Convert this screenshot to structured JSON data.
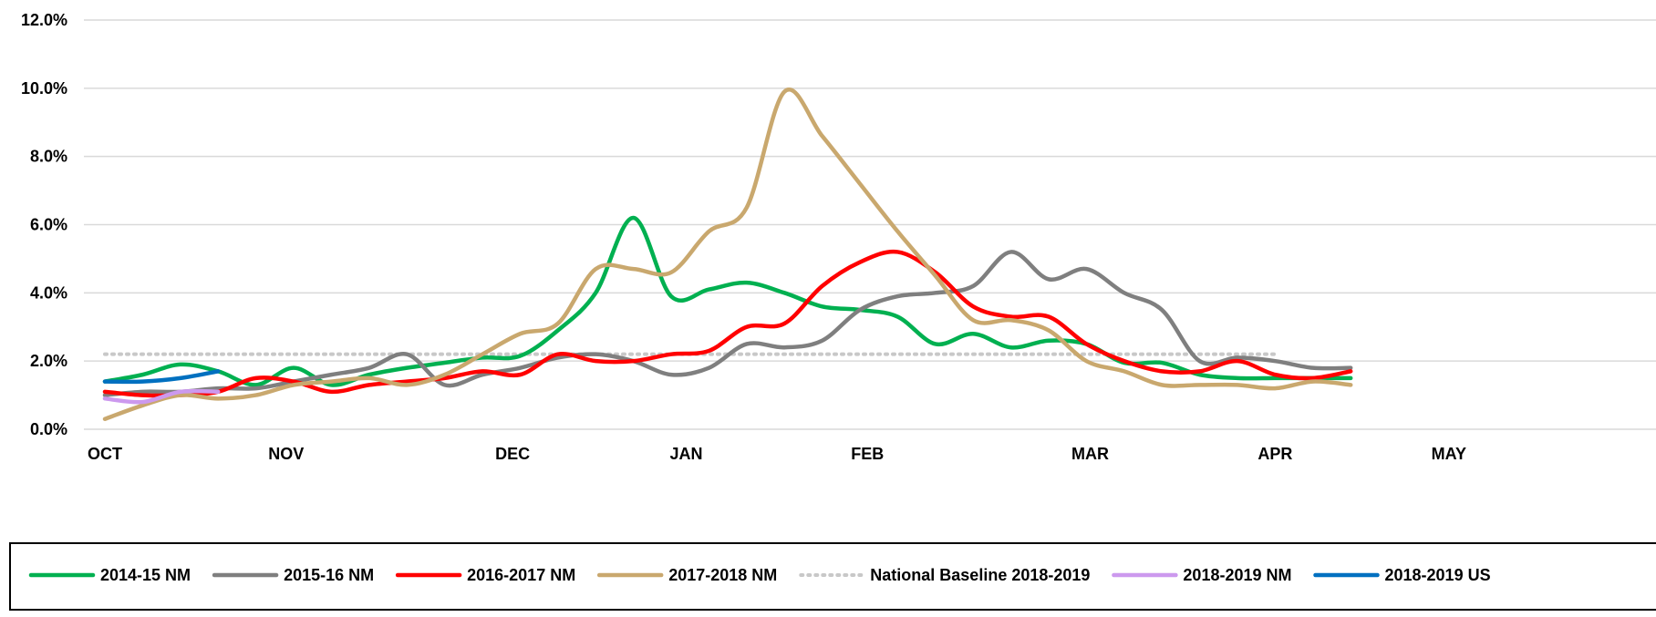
{
  "chart_data": {
    "type": "line",
    "title": "",
    "xlabel": "",
    "ylabel": "",
    "ylim": [
      0,
      12
    ],
    "y_format": "percent_one_decimal",
    "y_ticks": [
      0,
      2,
      4,
      6,
      8,
      10,
      12
    ],
    "y_tick_labels": [
      "0.0%",
      "2.0%",
      "4.0%",
      "6.0%",
      "8.0%",
      "10.0%",
      "12.0%"
    ],
    "x_unit": "week_index",
    "xlim": [
      0,
      33
    ],
    "month_labels": [
      {
        "label": "OCT",
        "x": 0
      },
      {
        "label": "NOV",
        "x": 4.8
      },
      {
        "label": "DEC",
        "x": 10.8
      },
      {
        "label": "JAN",
        "x": 15.4
      },
      {
        "label": "FEB",
        "x": 20.2
      },
      {
        "label": "MAR",
        "x": 26.1
      },
      {
        "label": "APR",
        "x": 31
      },
      {
        "label": "MAY",
        "x": 35.6
      }
    ],
    "grid": true,
    "legend_position": "bottom",
    "series": [
      {
        "name": "2014-15 NM",
        "color": "#00b050",
        "style": "solid",
        "x": [
          0,
          1,
          2,
          3,
          4,
          5,
          6,
          7,
          8,
          9,
          10,
          11,
          12,
          13,
          14,
          15,
          16,
          17,
          18,
          19,
          20,
          21,
          22,
          23,
          24,
          25,
          26,
          27,
          28,
          29,
          30,
          31,
          32,
          33
        ],
        "y": [
          1.4,
          1.6,
          1.9,
          1.7,
          1.3,
          1.8,
          1.3,
          1.6,
          1.8,
          1.95,
          2.1,
          2.15,
          2.9,
          4.0,
          6.2,
          3.9,
          4.1,
          4.3,
          4.0,
          3.6,
          3.5,
          3.3,
          2.5,
          2.8,
          2.4,
          2.6,
          2.5,
          1.95,
          1.95,
          1.6,
          1.5,
          1.5,
          1.5,
          1.5
        ]
      },
      {
        "name": "2015-16 NM",
        "color": "#7f7f7f",
        "style": "solid",
        "x": [
          0,
          1,
          2,
          3,
          4,
          5,
          6,
          7,
          8,
          9,
          10,
          11,
          12,
          13,
          14,
          15,
          16,
          17,
          18,
          19,
          20,
          21,
          22,
          23,
          24,
          25,
          26,
          27,
          28,
          29,
          30,
          31,
          32,
          33
        ],
        "y": [
          1.0,
          1.1,
          1.1,
          1.2,
          1.2,
          1.4,
          1.6,
          1.8,
          2.2,
          1.3,
          1.6,
          1.8,
          2.1,
          2.2,
          2.0,
          1.6,
          1.8,
          2.5,
          2.4,
          2.6,
          3.5,
          3.9,
          4.0,
          4.2,
          5.2,
          4.4,
          4.7,
          4.0,
          3.5,
          2.0,
          2.1,
          2.0,
          1.8,
          1.8
        ]
      },
      {
        "name": "2016-2017 NM",
        "color": "#ff0000",
        "style": "solid",
        "x": [
          0,
          1,
          2,
          3,
          4,
          5,
          6,
          7,
          8,
          9,
          10,
          11,
          12,
          13,
          14,
          15,
          16,
          17,
          18,
          19,
          20,
          21,
          22,
          23,
          24,
          25,
          26,
          27,
          28,
          29,
          30,
          31,
          32,
          33
        ],
        "y": [
          1.1,
          1.0,
          1.0,
          1.1,
          1.5,
          1.4,
          1.1,
          1.3,
          1.4,
          1.5,
          1.7,
          1.6,
          2.2,
          2.0,
          2.0,
          2.2,
          2.3,
          3.0,
          3.1,
          4.2,
          4.9,
          5.2,
          4.6,
          3.6,
          3.3,
          3.3,
          2.5,
          2.0,
          1.7,
          1.7,
          2.0,
          1.6,
          1.5,
          1.7
        ]
      },
      {
        "name": "2017-2018 NM",
        "color": "#c9a86e",
        "style": "solid",
        "x": [
          0,
          1,
          2,
          3,
          4,
          5,
          6,
          7,
          8,
          9,
          10,
          11,
          12,
          13,
          14,
          15,
          16,
          17,
          18,
          19,
          20,
          21,
          22,
          23,
          24,
          25,
          26,
          27,
          28,
          29,
          30,
          31,
          32,
          33
        ],
        "y": [
          0.3,
          0.7,
          1.0,
          0.9,
          1.0,
          1.3,
          1.4,
          1.5,
          1.3,
          1.6,
          2.2,
          2.8,
          3.1,
          4.7,
          4.7,
          4.6,
          5.8,
          6.5,
          9.9,
          8.6,
          7.2,
          5.8,
          4.5,
          3.2,
          3.2,
          2.9,
          2.0,
          1.7,
          1.3,
          1.3,
          1.3,
          1.2,
          1.4,
          1.3
        ]
      },
      {
        "name": "National Baseline 2018-2019",
        "color": "#c8c8c8",
        "style": "dotted",
        "x": [
          0,
          31
        ],
        "y": [
          2.2,
          2.2
        ]
      },
      {
        "name": "2018-2019 NM",
        "color": "#cc99ee",
        "style": "solid",
        "x": [
          0,
          1,
          2,
          3
        ],
        "y": [
          0.9,
          0.8,
          1.1,
          1.1
        ]
      },
      {
        "name": "2018-2019 US",
        "color": "#0070c0",
        "style": "solid",
        "x": [
          0,
          1,
          2,
          3
        ],
        "y": [
          1.4,
          1.4,
          1.5,
          1.7
        ]
      }
    ]
  }
}
